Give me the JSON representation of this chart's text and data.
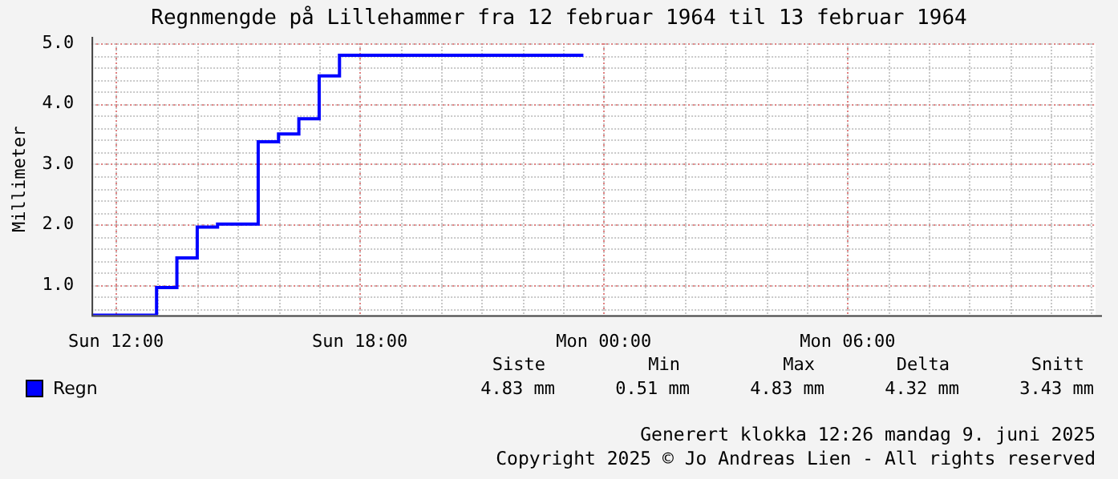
{
  "chart_data": {
    "type": "step",
    "title": "Regnmengde på Lillehammer fra 12 februar 1964 til 13 februar 1964",
    "ylabel": "Millimeter",
    "x": [
      "1964-02-12T11:24",
      "1964-02-12T13:00",
      "1964-02-12T13:30",
      "1964-02-12T14:00",
      "1964-02-12T14:30",
      "1964-02-12T15:30",
      "1964-02-12T16:00",
      "1964-02-12T16:30",
      "1964-02-12T17:00",
      "1964-02-12T17:30",
      "1964-02-12T23:30"
    ],
    "series": [
      {
        "name": "Regn",
        "color": "#0000ff",
        "values": [
          0.5,
          0.96,
          1.45,
          1.96,
          2.01,
          3.37,
          3.5,
          3.75,
          4.46,
          4.8,
          4.8
        ]
      }
    ],
    "xlim": [
      "1964-02-12T11:24",
      "1964-02-13T12:06"
    ],
    "xticks": [
      {
        "value": "1964-02-12T12:00",
        "label": "Sun 12:00"
      },
      {
        "value": "1964-02-12T18:00",
        "label": "Sun 18:00"
      },
      {
        "value": "1964-02-13T00:00",
        "label": "Mon 00:00"
      },
      {
        "value": "1964-02-13T06:00",
        "label": "Mon 06:00"
      }
    ],
    "ylim": [
      0.5,
      5
    ],
    "yticks": [
      {
        "value": 1,
        "label": "1.0"
      },
      {
        "value": 2,
        "label": "2.0"
      },
      {
        "value": 3,
        "label": "3.0"
      },
      {
        "value": 4,
        "label": "4.0"
      },
      {
        "value": 5,
        "label": "5.0"
      }
    ],
    "grid": true,
    "legend": "bottom left",
    "annotations": [
      "Siste",
      "Min",
      "Max",
      "Delta",
      "Snitt",
      "4.83 mm",
      "0.51 mm",
      "4.83 mm",
      "4.32 mm",
      "3.43 mm",
      "Generert klokka 12:26 mandag 9. juni 2025",
      "Copyright 2025 © Jo Andreas Lien - All rights reserved"
    ]
  }
}
